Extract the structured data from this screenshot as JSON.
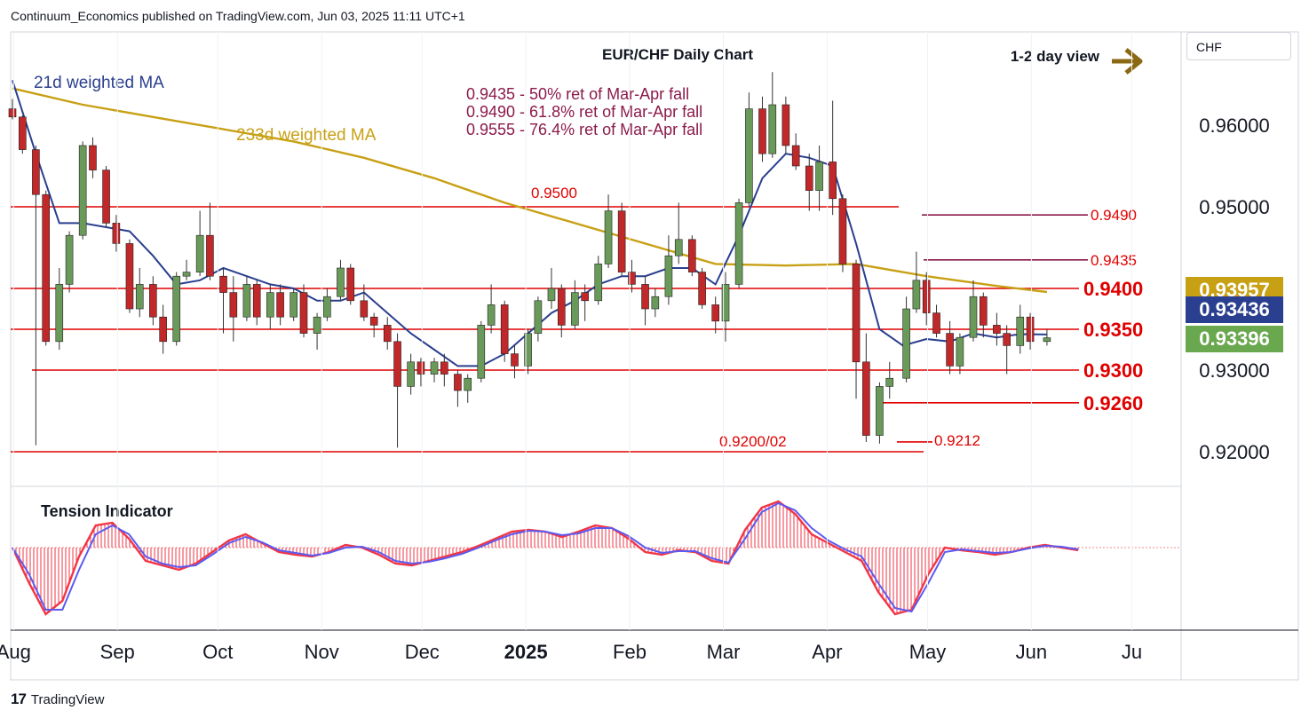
{
  "header": {
    "published_text": "Continuum_Economics published on TradingView.com, Jun 03, 2025 11:11 UTC+1"
  },
  "footer": {
    "brand_label": "TradingView"
  },
  "currency_label": "CHF",
  "colors": {
    "level_line": "#e00000",
    "ma21": "#2a3f8f",
    "ma233": "#c8a014",
    "fib_text": "#8b1a4a",
    "candle_up": "#6a9a5a",
    "candle_down": "#c0282a",
    "tension_red": "#f23645",
    "tension_blue": "#5b5bf2",
    "badge_ma233": "#c8a014",
    "badge_ma21": "#2a3f8f",
    "badge_last": "#6aa84f",
    "view_arrow": "#8b6914"
  },
  "chart_data": [
    {
      "type": "candlestick",
      "title": "EUR/CHF Daily Chart",
      "view_label": "1-2 day view",
      "x_tick_labels": [
        "Aug",
        "Sep",
        "Oct",
        "Nov",
        "Dec",
        "2025",
        "Feb",
        "Mar",
        "Apr",
        "May",
        "Jun",
        "Ju"
      ],
      "y_tick_labels": [
        "0.96000",
        "0.95000",
        "0.93000",
        "0.92000"
      ],
      "ylim": [
        0.9185,
        0.9705
      ],
      "ma_labels": [
        "21d weighted MA",
        "233d weighted MA"
      ],
      "fib_annotations": [
        "0.9435 - 50% ret of Mar-Apr fall",
        "0.9490 - 61.8% ret of Mar-Apr fall",
        "0.9555 - 76.4% ret of Mar-Apr fall"
      ],
      "levels": [
        {
          "value": 0.95,
          "label": "0.9500"
        },
        {
          "value": 0.949,
          "label": "0.9490"
        },
        {
          "value": 0.9435,
          "label": "0.9435"
        },
        {
          "value": 0.94,
          "label": "0.9400"
        },
        {
          "value": 0.935,
          "label": "0.9350"
        },
        {
          "value": 0.93,
          "label": "0.9300"
        },
        {
          "value": 0.926,
          "label": "0.9260"
        },
        {
          "value": 0.9212,
          "label": "0.9212"
        },
        {
          "value": 0.92,
          "label": "0.9200/02"
        }
      ],
      "price_badges": [
        {
          "name": "233d weighted MA",
          "value": "0.93957"
        },
        {
          "name": "21d weighted MA",
          "value": "0.93436"
        },
        {
          "name": "Last",
          "value": "0.93396"
        }
      ],
      "ma21_path": [
        [
          "2024-07-29",
          0.9655
        ],
        [
          "2024-08-05",
          0.9565
        ],
        [
          "2024-08-12",
          0.948
        ],
        [
          "2024-08-19",
          0.948
        ],
        [
          "2024-08-26",
          0.9475
        ],
        [
          "2024-09-02",
          0.947
        ],
        [
          "2024-09-09",
          0.944
        ],
        [
          "2024-09-16",
          0.9405
        ],
        [
          "2024-09-23",
          0.941
        ],
        [
          "2024-09-30",
          0.9425
        ],
        [
          "2024-10-07",
          0.9415
        ],
        [
          "2024-10-14",
          0.9405
        ],
        [
          "2024-10-21",
          0.94
        ],
        [
          "2024-10-28",
          0.9385
        ],
        [
          "2024-11-04",
          0.9385
        ],
        [
          "2024-11-11",
          0.9395
        ],
        [
          "2024-11-18",
          0.937
        ],
        [
          "2024-11-25",
          0.9345
        ],
        [
          "2024-12-02",
          0.9325
        ],
        [
          "2024-12-09",
          0.9305
        ],
        [
          "2024-12-16",
          0.9305
        ],
        [
          "2024-12-23",
          0.932
        ],
        [
          "2024-12-30",
          0.9345
        ],
        [
          "2025-01-06",
          0.937
        ],
        [
          "2025-01-13",
          0.9385
        ],
        [
          "2025-01-20",
          0.9405
        ],
        [
          "2025-01-27",
          0.9415
        ],
        [
          "2025-02-03",
          0.9415
        ],
        [
          "2025-02-10",
          0.9425
        ],
        [
          "2025-02-17",
          0.9425
        ],
        [
          "2025-02-24",
          0.9405
        ],
        [
          "2025-03-03",
          0.9465
        ],
        [
          "2025-03-10",
          0.9535
        ],
        [
          "2025-03-17",
          0.9565
        ],
        [
          "2025-03-24",
          0.956
        ],
        [
          "2025-03-31",
          0.955
        ],
        [
          "2025-04-07",
          0.9455
        ],
        [
          "2025-04-14",
          0.935
        ],
        [
          "2025-04-21",
          0.933
        ],
        [
          "2025-04-28",
          0.9338
        ],
        [
          "2025-05-05",
          0.9335
        ],
        [
          "2025-05-12",
          0.9345
        ],
        [
          "2025-05-19",
          0.934
        ],
        [
          "2025-05-26",
          0.9344
        ],
        [
          "2025-06-03",
          0.93436
        ]
      ],
      "ma233_path": [
        [
          "2024-07-29",
          0.9645
        ],
        [
          "2024-08-19",
          0.9625
        ],
        [
          "2024-09-09",
          0.961
        ],
        [
          "2024-09-30",
          0.9595
        ],
        [
          "2024-10-21",
          0.958
        ],
        [
          "2024-11-11",
          0.956
        ],
        [
          "2024-12-02",
          0.9535
        ],
        [
          "2024-12-23",
          0.9505
        ],
        [
          "2025-01-13",
          0.948
        ],
        [
          "2025-02-03",
          0.9455
        ],
        [
          "2025-02-24",
          0.943
        ],
        [
          "2025-03-17",
          0.9428
        ],
        [
          "2025-04-07",
          0.943
        ],
        [
          "2025-04-28",
          0.9415
        ],
        [
          "2025-05-19",
          0.9403
        ],
        [
          "2025-06-03",
          0.93957
        ]
      ],
      "candles": [
        [
          "2024-07-29",
          0.962,
          0.961,
          0.9632,
          0.9607
        ],
        [
          "2024-08-01",
          0.961,
          0.957,
          0.9612,
          0.9565
        ],
        [
          "2024-08-05",
          0.957,
          0.9515,
          0.9575,
          0.9208
        ],
        [
          "2024-08-08",
          0.9515,
          0.9335,
          0.952,
          0.933
        ],
        [
          "2024-08-12",
          0.9335,
          0.9405,
          0.9425,
          0.9325
        ],
        [
          "2024-08-15",
          0.9405,
          0.9465,
          0.947,
          0.9395
        ],
        [
          "2024-08-19",
          0.9465,
          0.9575,
          0.958,
          0.946
        ],
        [
          "2024-08-22",
          0.9575,
          0.9545,
          0.9585,
          0.9535
        ],
        [
          "2024-08-26",
          0.9545,
          0.948,
          0.955,
          0.9475
        ],
        [
          "2024-08-29",
          0.948,
          0.9455,
          0.949,
          0.9445
        ],
        [
          "2024-09-02",
          0.9455,
          0.9375,
          0.946,
          0.937
        ],
        [
          "2024-09-05",
          0.9375,
          0.9405,
          0.9425,
          0.9365
        ],
        [
          "2024-09-09",
          0.9405,
          0.9365,
          0.9415,
          0.9355
        ],
        [
          "2024-09-12",
          0.9365,
          0.9335,
          0.938,
          0.932
        ],
        [
          "2024-09-16",
          0.9335,
          0.9415,
          0.942,
          0.933
        ],
        [
          "2024-09-19",
          0.9415,
          0.942,
          0.9435,
          0.941
        ],
        [
          "2024-09-23",
          0.942,
          0.9465,
          0.9495,
          0.9415
        ],
        [
          "2024-09-26",
          0.9465,
          0.9415,
          0.9505,
          0.941
        ],
        [
          "2024-09-30",
          0.9415,
          0.9395,
          0.9425,
          0.9345
        ],
        [
          "2024-10-03",
          0.9395,
          0.9365,
          0.9415,
          0.9335
        ],
        [
          "2024-10-07",
          0.9365,
          0.9405,
          0.9415,
          0.936
        ],
        [
          "2024-10-10",
          0.9405,
          0.9365,
          0.941,
          0.9355
        ],
        [
          "2024-10-14",
          0.9365,
          0.9395,
          0.9405,
          0.935
        ],
        [
          "2024-10-17",
          0.9395,
          0.9365,
          0.9405,
          0.9355
        ],
        [
          "2024-10-21",
          0.9365,
          0.9395,
          0.94,
          0.936
        ],
        [
          "2024-10-24",
          0.9395,
          0.9345,
          0.9405,
          0.934
        ],
        [
          "2024-10-28",
          0.9345,
          0.9365,
          0.937,
          0.9325
        ],
        [
          "2024-10-31",
          0.9365,
          0.939,
          0.94,
          0.936
        ],
        [
          "2024-11-04",
          0.939,
          0.9425,
          0.9435,
          0.9385
        ],
        [
          "2024-11-07",
          0.9425,
          0.9385,
          0.943,
          0.938
        ],
        [
          "2024-11-11",
          0.9385,
          0.9365,
          0.9405,
          0.936
        ],
        [
          "2024-11-14",
          0.9365,
          0.9355,
          0.937,
          0.934
        ],
        [
          "2024-11-18",
          0.9355,
          0.9335,
          0.9365,
          0.9325
        ],
        [
          "2024-11-21",
          0.9335,
          0.928,
          0.9345,
          0.9205
        ],
        [
          "2024-11-25",
          0.928,
          0.931,
          0.932,
          0.927
        ],
        [
          "2024-11-28",
          0.931,
          0.9295,
          0.9315,
          0.928
        ],
        [
          "2024-12-02",
          0.9295,
          0.931,
          0.9315,
          0.9285
        ],
        [
          "2024-12-05",
          0.931,
          0.9295,
          0.932,
          0.928
        ],
        [
          "2024-12-09",
          0.9295,
          0.9275,
          0.93,
          0.9255
        ],
        [
          "2024-12-12",
          0.9275,
          0.929,
          0.9295,
          0.926
        ],
        [
          "2024-12-16",
          0.929,
          0.9355,
          0.936,
          0.9285
        ],
        [
          "2024-12-19",
          0.9355,
          0.938,
          0.9405,
          0.9345
        ],
        [
          "2024-12-23",
          0.938,
          0.932,
          0.9385,
          0.931
        ],
        [
          "2024-12-26",
          0.932,
          0.9305,
          0.933,
          0.929
        ],
        [
          "2024-12-30",
          0.9305,
          0.9345,
          0.935,
          0.9295
        ],
        [
          "2025-01-02",
          0.9345,
          0.9385,
          0.939,
          0.9335
        ],
        [
          "2025-01-06",
          0.9385,
          0.94,
          0.9425,
          0.9375
        ],
        [
          "2025-01-09",
          0.94,
          0.9355,
          0.9405,
          0.934
        ],
        [
          "2025-01-13",
          0.9355,
          0.9395,
          0.941,
          0.935
        ],
        [
          "2025-01-16",
          0.9395,
          0.9385,
          0.9405,
          0.936
        ],
        [
          "2025-01-20",
          0.9385,
          0.943,
          0.944,
          0.938
        ],
        [
          "2025-01-23",
          0.943,
          0.9495,
          0.9515,
          0.9425
        ],
        [
          "2025-01-27",
          0.9495,
          0.942,
          0.9505,
          0.9415
        ],
        [
          "2025-01-30",
          0.942,
          0.9405,
          0.9435,
          0.9395
        ],
        [
          "2025-02-03",
          0.9405,
          0.9375,
          0.9415,
          0.9355
        ],
        [
          "2025-02-06",
          0.9375,
          0.939,
          0.94,
          0.9365
        ],
        [
          "2025-02-10",
          0.939,
          0.944,
          0.9465,
          0.938
        ],
        [
          "2025-02-13",
          0.944,
          0.946,
          0.9505,
          0.943
        ],
        [
          "2025-02-17",
          0.946,
          0.942,
          0.9465,
          0.9415
        ],
        [
          "2025-02-20",
          0.942,
          0.938,
          0.9425,
          0.9375
        ],
        [
          "2025-02-24",
          0.938,
          0.936,
          0.939,
          0.9345
        ],
        [
          "2025-02-27",
          0.936,
          0.9405,
          0.942,
          0.9335
        ],
        [
          "2025-03-03",
          0.9405,
          0.9505,
          0.951,
          0.94
        ],
        [
          "2025-03-06",
          0.9505,
          0.962,
          0.964,
          0.95
        ],
        [
          "2025-03-10",
          0.962,
          0.9565,
          0.9635,
          0.9555
        ],
        [
          "2025-03-13",
          0.9565,
          0.9625,
          0.9665,
          0.956
        ],
        [
          "2025-03-17",
          0.9625,
          0.9575,
          0.9635,
          0.9565
        ],
        [
          "2025-03-20",
          0.9575,
          0.955,
          0.959,
          0.9545
        ],
        [
          "2025-03-24",
          0.955,
          0.952,
          0.9565,
          0.9495
        ],
        [
          "2025-03-27",
          0.952,
          0.9555,
          0.9575,
          0.9495
        ],
        [
          "2025-03-31",
          0.9555,
          0.951,
          0.963,
          0.949
        ],
        [
          "2025-04-03",
          0.951,
          0.943,
          0.9515,
          0.942
        ],
        [
          "2025-04-07",
          0.943,
          0.931,
          0.9435,
          0.9265
        ],
        [
          "2025-04-10",
          0.931,
          0.922,
          0.9345,
          0.9212
        ],
        [
          "2025-04-14",
          0.922,
          0.928,
          0.9285,
          0.921
        ],
        [
          "2025-04-17",
          0.928,
          0.929,
          0.931,
          0.9265
        ],
        [
          "2025-04-22",
          0.929,
          0.9375,
          0.939,
          0.9285
        ],
        [
          "2025-04-25",
          0.9375,
          0.941,
          0.9445,
          0.937
        ],
        [
          "2025-04-28",
          0.941,
          0.937,
          0.942,
          0.9355
        ],
        [
          "2025-05-01",
          0.937,
          0.9345,
          0.938,
          0.934
        ],
        [
          "2025-05-05",
          0.9345,
          0.9305,
          0.936,
          0.9295
        ],
        [
          "2025-05-08",
          0.9305,
          0.934,
          0.9345,
          0.9295
        ],
        [
          "2025-05-12",
          0.934,
          0.939,
          0.941,
          0.9335
        ],
        [
          "2025-05-15",
          0.939,
          0.9355,
          0.9395,
          0.934
        ],
        [
          "2025-05-19",
          0.9355,
          0.9345,
          0.937,
          0.933
        ],
        [
          "2025-05-22",
          0.9345,
          0.933,
          0.9355,
          0.9295
        ],
        [
          "2025-05-26",
          0.933,
          0.9365,
          0.938,
          0.932
        ],
        [
          "2025-05-29",
          0.9365,
          0.9335,
          0.937,
          0.9325
        ],
        [
          "2025-06-03",
          0.9335,
          0.93396,
          0.935,
          0.933
        ]
      ]
    },
    {
      "type": "line",
      "title": "Tension Indicator",
      "series": [
        {
          "values": [
            0,
            -40,
            -75,
            -60,
            -10,
            25,
            28,
            10,
            -15,
            -20,
            -25,
            -18,
            -5,
            8,
            15,
            5,
            -5,
            -8,
            -10,
            -5,
            3,
            0,
            -8,
            -18,
            -20,
            -15,
            -10,
            -5,
            2,
            10,
            18,
            20,
            18,
            12,
            18,
            25,
            22,
            10,
            -5,
            -8,
            -3,
            -5,
            -15,
            -18,
            20,
            45,
            52,
            38,
            15,
            5,
            -5,
            -15,
            -50,
            -75,
            -70,
            -30,
            0,
            -3,
            -5,
            -8,
            -5,
            0,
            3,
            0,
            -3
          ]
        },
        {
          "values": [
            0,
            -30,
            -70,
            -70,
            -25,
            15,
            25,
            15,
            -10,
            -18,
            -22,
            -20,
            -8,
            5,
            12,
            6,
            -3,
            -6,
            -9,
            -6,
            0,
            1,
            -5,
            -15,
            -18,
            -16,
            -12,
            -7,
            0,
            8,
            15,
            19,
            18,
            14,
            16,
            22,
            22,
            13,
            0,
            -6,
            -4,
            -4,
            -12,
            -17,
            10,
            40,
            50,
            42,
            22,
            8,
            -2,
            -10,
            -40,
            -68,
            -72,
            -40,
            -5,
            -2,
            -4,
            -6,
            -5,
            -1,
            2,
            1,
            -2
          ]
        }
      ]
    }
  ]
}
